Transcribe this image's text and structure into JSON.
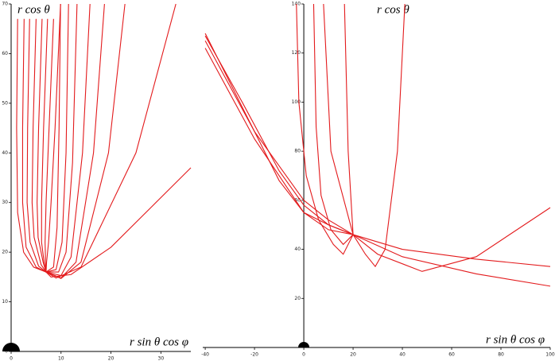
{
  "chart_data": [
    {
      "type": "line",
      "y_label": "r cos θ",
      "x_label": "r sin θ cos φ",
      "color": "#e31a1c",
      "xlim": [
        0,
        36
      ],
      "ylim": [
        0,
        70
      ],
      "xticks": [
        0,
        10,
        20,
        30
      ],
      "yticks": [
        0,
        10,
        20,
        30,
        40,
        50,
        60,
        70
      ],
      "series": [
        {
          "x": [
            1.3,
            1.1,
            1.3,
            2.5,
            4.5,
            7,
            8.5,
            9.2,
            9.6,
            9.9
          ],
          "values": [
            67,
            45,
            28,
            20,
            17,
            16,
            17,
            25,
            45,
            70
          ]
        },
        {
          "x": [
            2.6,
            2.3,
            2.3,
            3,
            5,
            7,
            9,
            10.2,
            11,
            11.5
          ],
          "values": [
            67,
            45,
            30,
            21,
            17,
            16,
            16.5,
            22,
            40,
            70
          ]
        },
        {
          "x": [
            3.7,
            3.3,
            3.2,
            3.8,
            5.5,
            7,
            9.5,
            11,
            12.3,
            13.2
          ],
          "values": [
            67,
            45,
            30,
            22,
            17.2,
            16,
            16,
            20,
            38,
            70
          ]
        },
        {
          "x": [
            5,
            4.4,
            4.2,
            4.6,
            6,
            7,
            10,
            12,
            14.3,
            15.8
          ],
          "values": [
            67,
            45,
            30,
            23,
            17.5,
            16,
            15.3,
            19,
            40,
            70
          ]
        },
        {
          "x": [
            6.2,
            5.5,
            5.2,
            5.4,
            6.4,
            7,
            10,
            13,
            16.5,
            18.7
          ],
          "values": [
            67,
            45,
            30,
            23,
            18,
            16,
            14.8,
            18,
            40,
            70
          ]
        },
        {
          "x": [
            7.3,
            6.5,
            6.1,
            6.1,
            6.6,
            7,
            10,
            14,
            19.5,
            22.8
          ],
          "values": [
            67,
            45,
            30,
            22,
            18,
            16,
            14.7,
            18,
            40,
            70
          ]
        },
        {
          "x": [
            8.5,
            7.6,
            7,
            6.8,
            6.9,
            7,
            9,
            14,
            25,
            33
          ],
          "values": [
            67,
            45,
            30,
            22,
            18,
            16,
            14.8,
            17,
            40,
            70
          ]
        },
        {
          "x": [
            9.9,
            8.8,
            8,
            7.5,
            7.1,
            7,
            8,
            12,
            20,
            28,
            36
          ],
          "values": [
            70,
            45,
            30,
            22,
            18,
            16,
            15,
            15.5,
            21,
            29,
            37
          ]
        }
      ]
    },
    {
      "type": "line",
      "y_label": "r cos θ",
      "x_label": "r sin θ cos φ",
      "color": "#e31a1c",
      "xlim": [
        -41,
        100
      ],
      "ylim": [
        0,
        140
      ],
      "xticks": [
        -40,
        -20,
        0,
        20,
        40,
        60,
        80,
        100
      ],
      "yticks": [
        20,
        40,
        60,
        80,
        100,
        120,
        140
      ],
      "series": [
        {
          "x": [
            -40,
            -25,
            -10,
            0,
            10,
            20,
            40,
            70,
            100
          ],
          "values": [
            127,
            100,
            72,
            58,
            50,
            46,
            40,
            36,
            33
          ]
        },
        {
          "x": [
            -40,
            -25,
            -10,
            0,
            10,
            20,
            40,
            70,
            100
          ],
          "values": [
            128,
            98,
            68,
            55,
            48,
            46,
            37,
            30,
            25
          ]
        },
        {
          "x": [
            -40,
            -20,
            0,
            10,
            20,
            30,
            48,
            70,
            100
          ],
          "values": [
            125,
            88,
            60,
            52,
            46,
            38,
            31,
            37,
            57
          ]
        },
        {
          "x": [
            -40,
            -20,
            0,
            10,
            20,
            25,
            29,
            33,
            38,
            41
          ],
          "values": [
            122,
            85,
            55,
            50,
            46,
            38,
            33,
            40,
            80,
            140
          ]
        },
        {
          "x": [
            -3,
            -2,
            1,
            6,
            12,
            16,
            20,
            18,
            16.5
          ],
          "values": [
            140,
            100,
            70,
            52,
            42,
            38,
            46,
            80,
            140
          ]
        },
        {
          "x": [
            4,
            5,
            7,
            11,
            16,
            20,
            11,
            8
          ],
          "values": [
            140,
            90,
            62,
            48,
            42,
            46,
            80,
            140
          ]
        }
      ]
    }
  ]
}
